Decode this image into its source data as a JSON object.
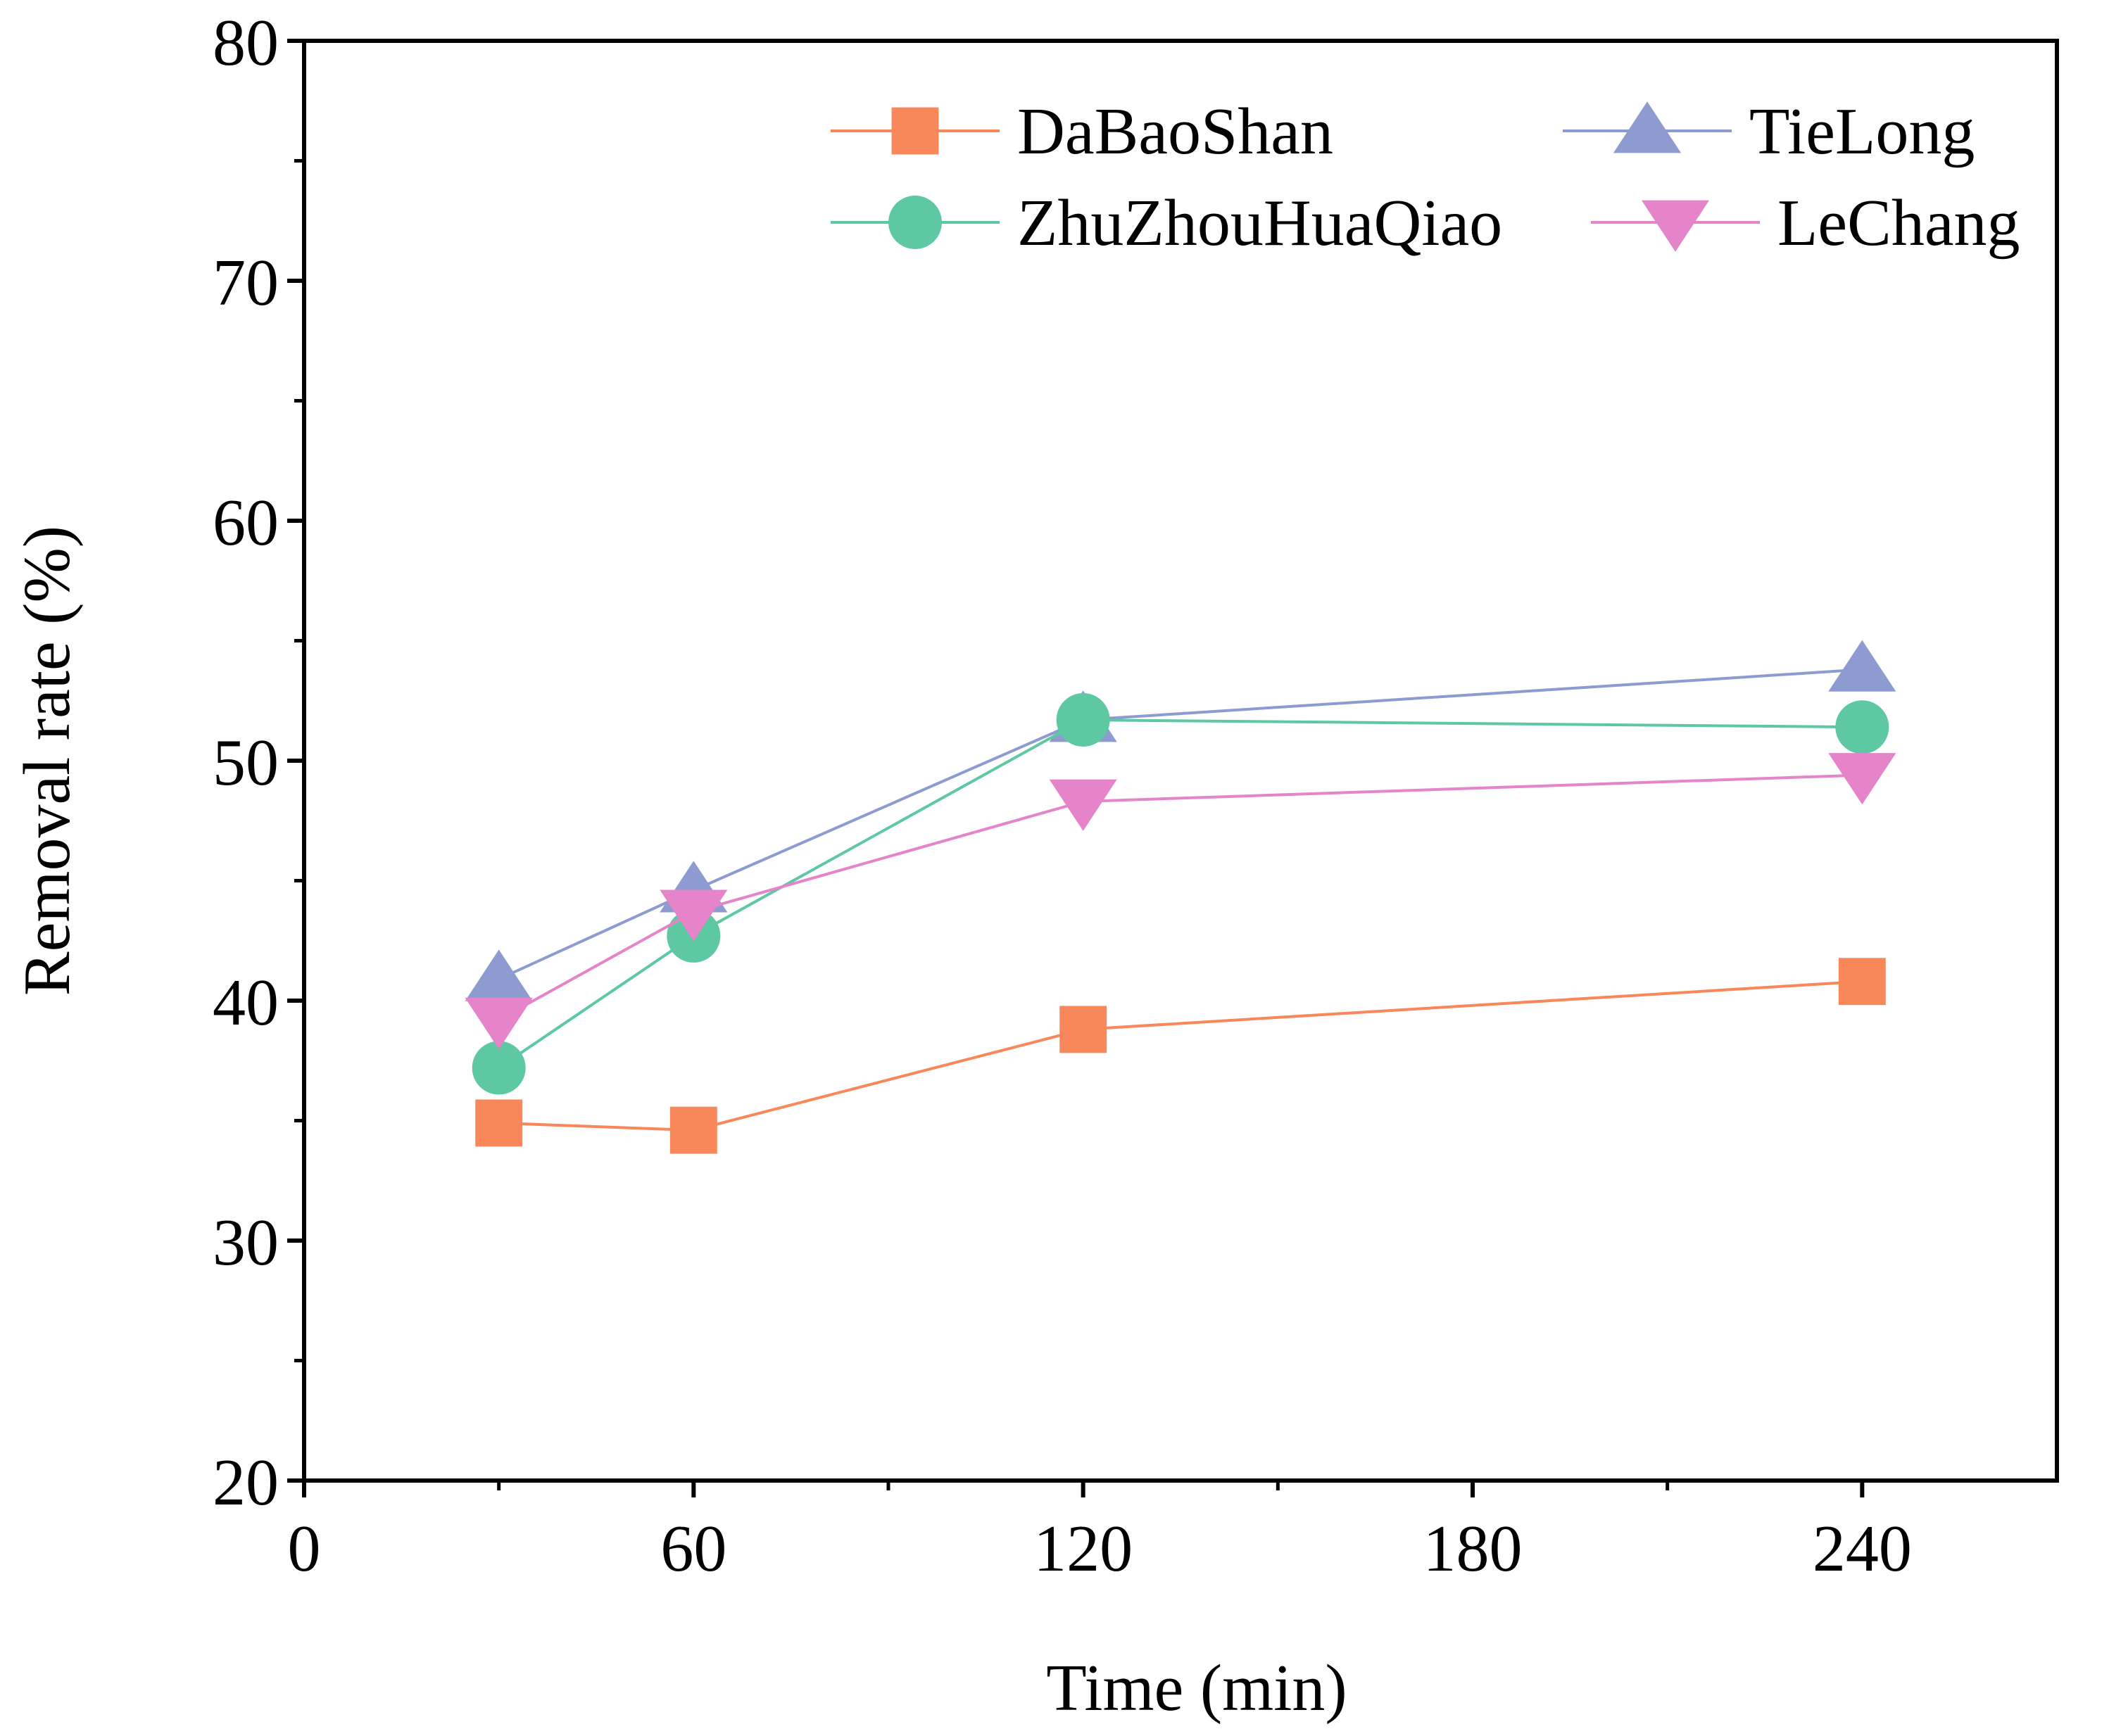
{
  "chart_data": {
    "type": "line",
    "title": "",
    "xlabel": "Time (min)",
    "ylabel": "Removal rate (%)",
    "xlim": [
      0,
      270
    ],
    "ylim": [
      20,
      80
    ],
    "xticks": [
      0,
      60,
      120,
      180,
      240
    ],
    "xtick_labels": [
      "0",
      "60",
      "120",
      "180",
      "240"
    ],
    "yticks": [
      20,
      30,
      40,
      50,
      60,
      70,
      80
    ],
    "ytick_labels": [
      "20",
      "30",
      "40",
      "50",
      "60",
      "70",
      "80"
    ],
    "x": [
      30,
      60,
      120,
      240
    ],
    "legend_position": "top-right",
    "grid": false,
    "series": [
      {
        "name": "DaBaoShan",
        "marker": "square",
        "color": "#F8885A",
        "values": [
          34.9,
          34.6,
          38.8,
          40.8
        ]
      },
      {
        "name": "TieLong",
        "marker": "triangle-up",
        "color": "#8E9BD1",
        "values": [
          40.9,
          44.6,
          51.7,
          53.8
        ]
      },
      {
        "name": "ZhuZhouHuaQiao",
        "marker": "circle",
        "color": "#5DC8A2",
        "values": [
          37.2,
          42.7,
          51.7,
          51.4
        ]
      },
      {
        "name": "LeChang",
        "marker": "triangle-down",
        "color": "#E584C8",
        "values": [
          39.2,
          43.7,
          48.3,
          49.4
        ]
      }
    ]
  }
}
